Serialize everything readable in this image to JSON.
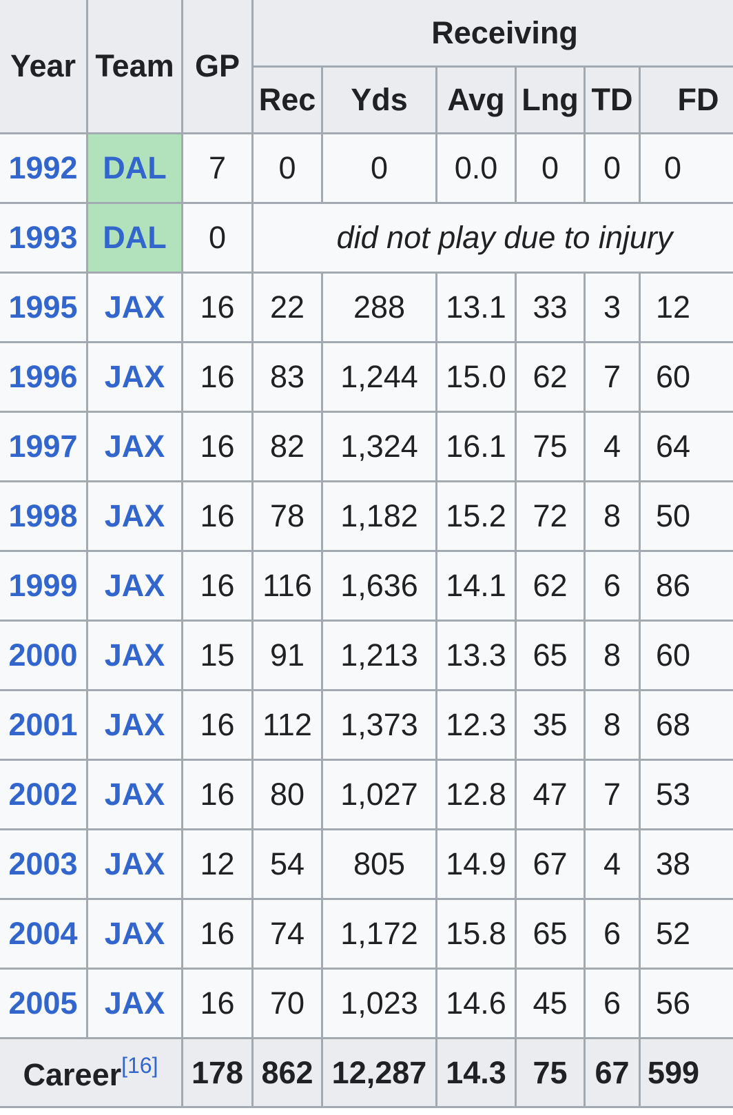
{
  "headers": {
    "year": "Year",
    "team": "Team",
    "gp": "GP",
    "group": "Receiving",
    "rec": "Rec",
    "yds": "Yds",
    "avg": "Avg",
    "lng": "Lng",
    "td": "TD",
    "fd": "FD"
  },
  "rows": [
    {
      "year": "1992",
      "team": "DAL",
      "gp": "7",
      "rec": "0",
      "yds": "0",
      "avg": "0.0",
      "lng": "0",
      "td": "0",
      "fd": "0"
    },
    {
      "year": "1993",
      "team": "DAL",
      "gp": "0",
      "note": "did not play due to injury"
    },
    {
      "year": "1995",
      "team": "JAX",
      "gp": "16",
      "rec": "22",
      "yds": "288",
      "avg": "13.1",
      "lng": "33",
      "td": "3",
      "fd": "12"
    },
    {
      "year": "1996",
      "team": "JAX",
      "gp": "16",
      "rec": "83",
      "yds": "1,244",
      "avg": "15.0",
      "lng": "62",
      "td": "7",
      "fd": "60"
    },
    {
      "year": "1997",
      "team": "JAX",
      "gp": "16",
      "rec": "82",
      "yds": "1,324",
      "avg": "16.1",
      "lng": "75",
      "td": "4",
      "fd": "64"
    },
    {
      "year": "1998",
      "team": "JAX",
      "gp": "16",
      "rec": "78",
      "yds": "1,182",
      "avg": "15.2",
      "lng": "72",
      "td": "8",
      "fd": "50"
    },
    {
      "year": "1999",
      "team": "JAX",
      "gp": "16",
      "rec": "116",
      "yds": "1,636",
      "avg": "14.1",
      "lng": "62",
      "td": "6",
      "fd": "86"
    },
    {
      "year": "2000",
      "team": "JAX",
      "gp": "15",
      "rec": "91",
      "yds": "1,213",
      "avg": "13.3",
      "lng": "65",
      "td": "8",
      "fd": "60"
    },
    {
      "year": "2001",
      "team": "JAX",
      "gp": "16",
      "rec": "112",
      "yds": "1,373",
      "avg": "12.3",
      "lng": "35",
      "td": "8",
      "fd": "68"
    },
    {
      "year": "2002",
      "team": "JAX",
      "gp": "16",
      "rec": "80",
      "yds": "1,027",
      "avg": "12.8",
      "lng": "47",
      "td": "7",
      "fd": "53"
    },
    {
      "year": "2003",
      "team": "JAX",
      "gp": "12",
      "rec": "54",
      "yds": "805",
      "avg": "14.9",
      "lng": "67",
      "td": "4",
      "fd": "38"
    },
    {
      "year": "2004",
      "team": "JAX",
      "gp": "16",
      "rec": "74",
      "yds": "1,172",
      "avg": "15.8",
      "lng": "65",
      "td": "6",
      "fd": "52"
    },
    {
      "year": "2005",
      "team": "JAX",
      "gp": "16",
      "rec": "70",
      "yds": "1,023",
      "avg": "14.6",
      "lng": "45",
      "td": "6",
      "fd": "56"
    }
  ],
  "career": {
    "label": "Career",
    "ref": "[16]",
    "gp": "178",
    "rec": "862",
    "yds": "12,287",
    "avg": "14.3",
    "lng": "75",
    "td": "67",
    "fd": "599"
  },
  "colors": {
    "header_bg": "#eaecf0",
    "cell_bg": "#f8f9fa",
    "link": "#3366cc",
    "team_highlight": "#b2e2bb",
    "league_lead": "#cfecec"
  }
}
